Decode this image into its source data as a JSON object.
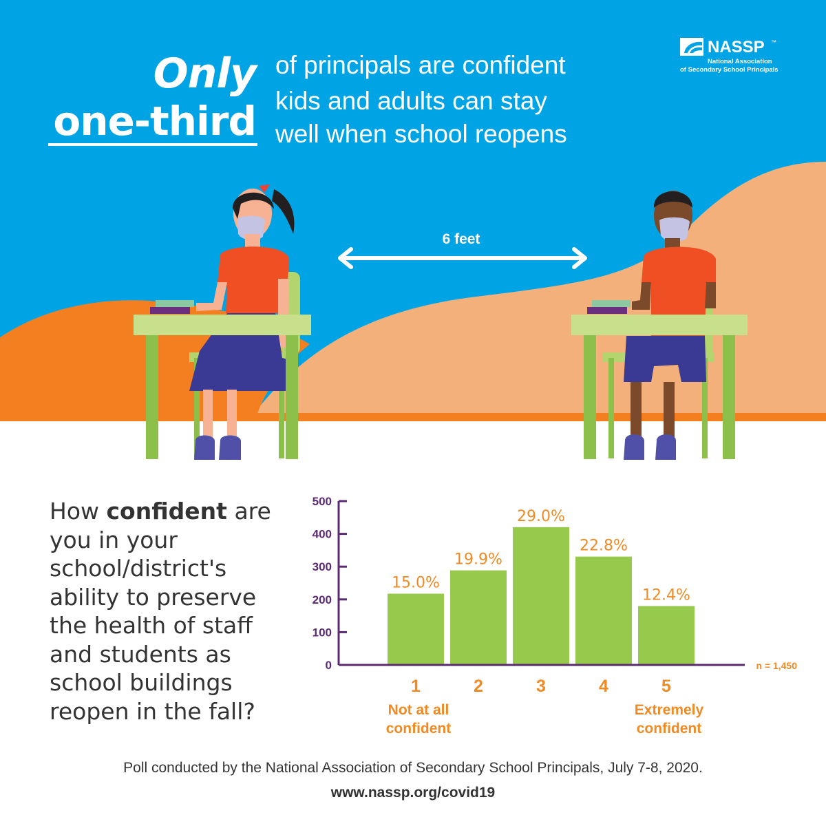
{
  "headline": {
    "bold_line1": "Only",
    "bold_line2": "one-third",
    "rest_line1": "of principals are confident",
    "rest_line2": "kids and adults can stay",
    "rest_line3": "well when school reopens"
  },
  "logo": {
    "name": "NASSP",
    "tm": "™",
    "sub_line1": "National Association",
    "sub_line2": "of Secondary School Principals"
  },
  "illustration": {
    "distance_label": "6 feet"
  },
  "question": {
    "prefix": "How ",
    "bold": "confident",
    "suffix": " are you in your school/district's ability to preserve the health of staff and students as school buildings reopen in the fall?"
  },
  "chart_data": {
    "type": "bar",
    "categories": [
      "1",
      "2",
      "3",
      "4",
      "5"
    ],
    "values": [
      217.5,
      288.6,
      420.5,
      330.6,
      179.8
    ],
    "data_labels": [
      "15.0%",
      "19.9%",
      "29.0%",
      "22.8%",
      "12.4%"
    ],
    "category_sublabels": [
      "Not at all\nconfident",
      "",
      "",
      "",
      "Extremely\nconfident"
    ],
    "yticks": [
      0,
      100,
      200,
      300,
      400,
      500
    ],
    "ylim": [
      0,
      500
    ],
    "n_label": "n = 1,450",
    "grid": false,
    "colors": {
      "bar": "#97c94c",
      "axis": "#5c2a73",
      "label": "#f08a24"
    }
  },
  "footer": {
    "poll": "Poll conducted by the National Association of Secondary School Principals, July 7-8, 2020.",
    "url": "www.nassp.org/covid19"
  },
  "colors": {
    "sky": "#00a4e4",
    "orange_hill": "#f37f20",
    "peach_hill": "#f3b07b",
    "desk": "#c8e08c",
    "desk_leg": "#8cc04a",
    "shirt": "#f04e23",
    "pants": "#3a3993"
  }
}
